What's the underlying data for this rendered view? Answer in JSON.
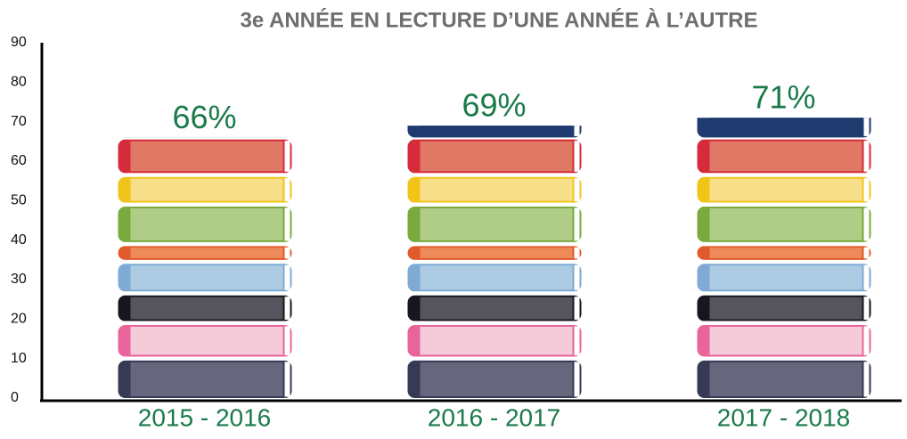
{
  "chart_data": {
    "type": "bar",
    "title": "3e ANNÉE EN LECTURE D’UNE ANNÉE À L’AUTRE",
    "categories": [
      "2015 - 2016",
      "2016 - 2017",
      "2017 - 2018"
    ],
    "values": [
      66,
      69,
      71
    ],
    "value_labels": [
      "66%",
      "69%",
      "71%"
    ],
    "ylim": [
      0,
      90
    ],
    "yticks": [
      0,
      10,
      20,
      30,
      40,
      50,
      60,
      70,
      80,
      90
    ],
    "color": "#1a7a4a"
  }
}
